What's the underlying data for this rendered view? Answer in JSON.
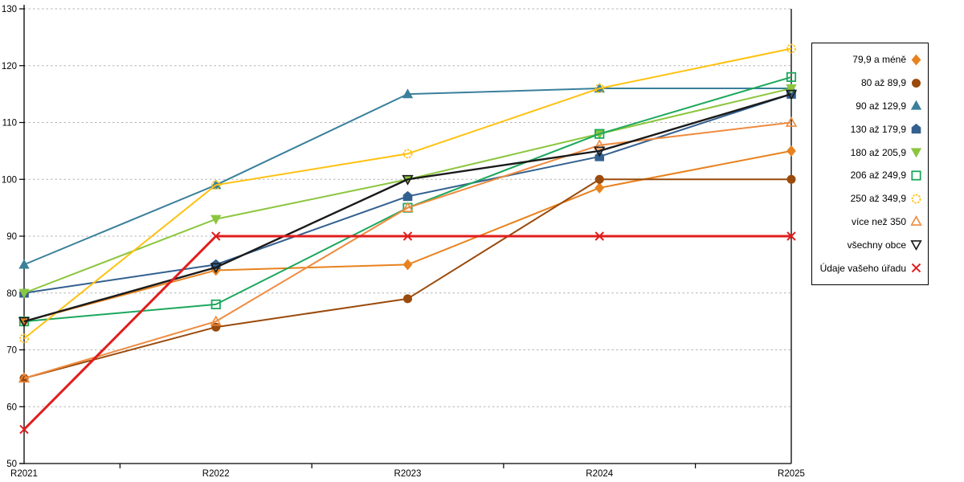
{
  "chart_data": {
    "type": "line",
    "title": "",
    "xlabel": "",
    "ylabel": "",
    "ylim": [
      50,
      130
    ],
    "ytick_step": 10,
    "y_tick_labels": [
      "50",
      "60",
      "70",
      "80",
      "90",
      "100",
      "110",
      "120",
      "130"
    ],
    "grid": "horizontal-dashed",
    "legend_position": "right",
    "categories": [
      "R2021",
      "R2022",
      "R2023",
      "R2024",
      "R2025"
    ],
    "series": [
      {
        "name": "79,9 a méně",
        "marker": "diamond",
        "color": "#E8821E",
        "line_width": 2,
        "values": [
          75,
          84,
          85,
          98.5,
          105
        ]
      },
      {
        "name": "80 až 89,9",
        "marker": "circle",
        "color": "#9A4A0B",
        "line_width": 2,
        "values": [
          65,
          74,
          79,
          100,
          100
        ]
      },
      {
        "name": "90 až 129,9",
        "marker": "triangle-up",
        "color": "#3A809B",
        "line_width": 2,
        "values": [
          85,
          99,
          115,
          116,
          116
        ]
      },
      {
        "name": "130 až 179,9",
        "marker": "pentagon",
        "color": "#33608F",
        "line_width": 2,
        "values": [
          80,
          85,
          97,
          104,
          115
        ]
      },
      {
        "name": "180 až 205,9",
        "marker": "triangle-down",
        "color": "#8CC63E",
        "line_width": 2,
        "values": [
          80,
          93,
          100,
          108,
          116
        ]
      },
      {
        "name": "206 až 249,9",
        "marker": "square-open",
        "color": "#1CA85C",
        "line_width": 2,
        "values": [
          75,
          78,
          95,
          108,
          118
        ]
      },
      {
        "name": "250 až 349,9",
        "marker": "circle-open",
        "color": "#FFC110",
        "line_width": 2,
        "values": [
          72,
          99,
          104.5,
          116,
          123
        ]
      },
      {
        "name": "více než 350",
        "marker": "triangle-up-open",
        "color": "#EF8B3F",
        "line_width": 2,
        "values": [
          65,
          75,
          95,
          106,
          110
        ]
      },
      {
        "name": "všechny obce",
        "marker": "triangle-down-open",
        "color": "#1A1A1A",
        "line_width": 2.4,
        "values": [
          75,
          84.5,
          100,
          105,
          115
        ]
      },
      {
        "name": "Údaje vašeho úřadu",
        "marker": "x",
        "color": "#E01E1E",
        "line_width": 3,
        "values": [
          56,
          90,
          90,
          90,
          90
        ]
      }
    ]
  },
  "style": {
    "grid_color": "#b3b3b3",
    "axis_color": "#000000",
    "background": "#ffffff"
  }
}
